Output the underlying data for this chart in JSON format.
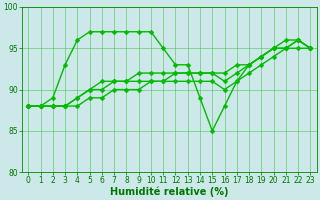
{
  "series": [
    {
      "x": [
        0,
        1,
        2,
        3,
        4,
        5,
        6,
        7,
        8,
        9,
        10,
        11,
        12,
        13,
        14,
        15,
        16,
        17,
        18,
        19,
        20,
        21,
        22,
        23
      ],
      "y": [
        88,
        88,
        89,
        93,
        96,
        97,
        97,
        97,
        97,
        97,
        97,
        95,
        93,
        93,
        89,
        85,
        88,
        91,
        93,
        94,
        95,
        96,
        96,
        95
      ]
    },
    {
      "x": [
        0,
        1,
        2,
        3,
        4,
        5,
        6,
        7,
        8,
        9,
        10,
        11,
        12,
        13,
        14,
        15,
        16,
        17,
        18,
        19,
        20,
        21,
        22,
        23
      ],
      "y": [
        88,
        88,
        88,
        88,
        89,
        90,
        91,
        91,
        91,
        92,
        92,
        92,
        92,
        92,
        92,
        92,
        92,
        93,
        93,
        94,
        95,
        95,
        96,
        95
      ]
    },
    {
      "x": [
        0,
        1,
        2,
        3,
        4,
        5,
        6,
        7,
        8,
        9,
        10,
        11,
        12,
        13,
        14,
        15,
        16,
        17,
        18,
        19,
        20,
        21,
        22,
        23
      ],
      "y": [
        88,
        88,
        88,
        88,
        89,
        90,
        90,
        91,
        91,
        91,
        91,
        91,
        92,
        92,
        92,
        92,
        91,
        92,
        93,
        94,
        95,
        95,
        96,
        95
      ]
    },
    {
      "x": [
        0,
        1,
        2,
        3,
        4,
        5,
        6,
        7,
        8,
        9,
        10,
        11,
        12,
        13,
        14,
        15,
        16,
        17,
        18,
        19,
        20,
        21,
        22,
        23
      ],
      "y": [
        88,
        88,
        88,
        88,
        88,
        89,
        89,
        90,
        90,
        90,
        91,
        91,
        91,
        91,
        91,
        91,
        90,
        91,
        92,
        93,
        94,
        95,
        95,
        95
      ]
    }
  ],
  "line_color": "#00bb00",
  "marker": "D",
  "markersize": 2.5,
  "linewidth": 1.0,
  "bg_color": "#cce8e8",
  "grid_color": "#33bb33",
  "axis_color": "#008800",
  "xlabel": "Humidité relative (%)",
  "xlabel_fontsize": 7,
  "xlabel_color": "#007700",
  "tick_color": "#007700",
  "tick_fontsize": 5.5,
  "xlim": [
    -0.5,
    23.5
  ],
  "ylim": [
    80,
    100
  ],
  "yticks": [
    80,
    85,
    90,
    95,
    100
  ],
  "xticks": [
    0,
    1,
    2,
    3,
    4,
    5,
    6,
    7,
    8,
    9,
    10,
    11,
    12,
    13,
    14,
    15,
    16,
    17,
    18,
    19,
    20,
    21,
    22,
    23
  ]
}
